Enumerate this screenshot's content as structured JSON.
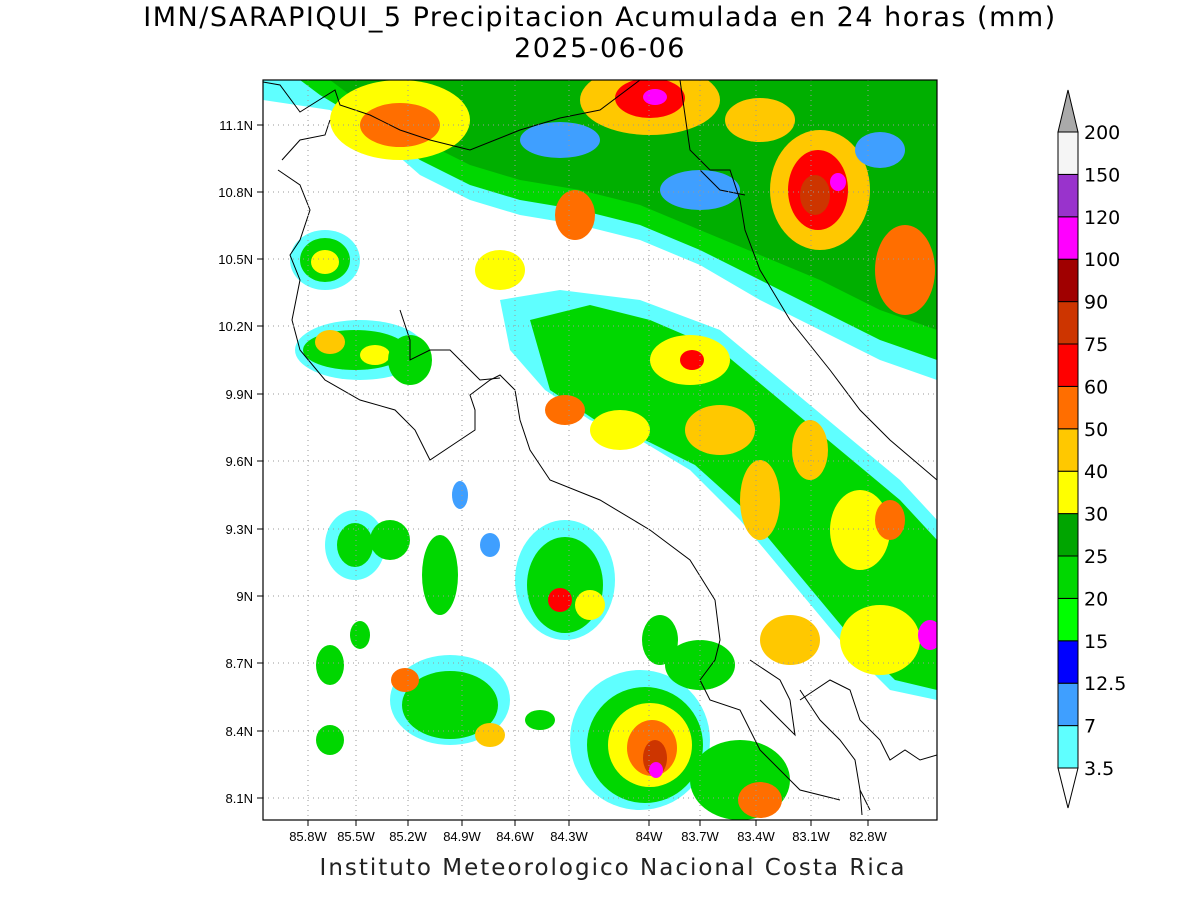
{
  "header": {
    "title_line1": "IMN/SARAPIQUI_5 Precipitacion Acumulada en 24 horas (mm)",
    "title_line2": "2025-06-06"
  },
  "footer": {
    "credit": "Instituto Meteorologico Nacional Costa Rica"
  },
  "map": {
    "region": "Costa Rica",
    "lon_range": [
      -86.0,
      -83.0
    ],
    "lat_range": [
      8.0,
      11.3
    ],
    "lon_ticks": [
      "85.8W",
      "85.5W",
      "85.2W",
      "84.9W",
      "84.6W",
      "84.3W",
      "84W",
      "83.7W",
      "83.4W",
      "83.1W",
      "82.8W"
    ],
    "lat_ticks": [
      "11.1N",
      "10.8N",
      "10.5N",
      "10.2N",
      "9.9N",
      "9.6N",
      "9.3N",
      "9N",
      "8.7N",
      "8.4N",
      "8.1N"
    ],
    "grid": true
  },
  "colorbar": {
    "unit": "mm",
    "levels": [
      "3.5",
      "7",
      "12.5",
      "15",
      "20",
      "25",
      "30",
      "40",
      "50",
      "60",
      "75",
      "90",
      "100",
      "120",
      "150",
      "200"
    ],
    "colors": [
      "#5fffff",
      "#3f9fff",
      "#0000ff",
      "#00ff00",
      "#00d700",
      "#00a500",
      "#ffff00",
      "#ffc800",
      "#ff6e00",
      "#ff0000",
      "#cd3500",
      "#a00000",
      "#ff00ff",
      "#9933cc",
      "#f5f5f5",
      "#aaaaaa"
    ],
    "below_color": "#ffffff",
    "above_color": "#aaaaaa"
  }
}
